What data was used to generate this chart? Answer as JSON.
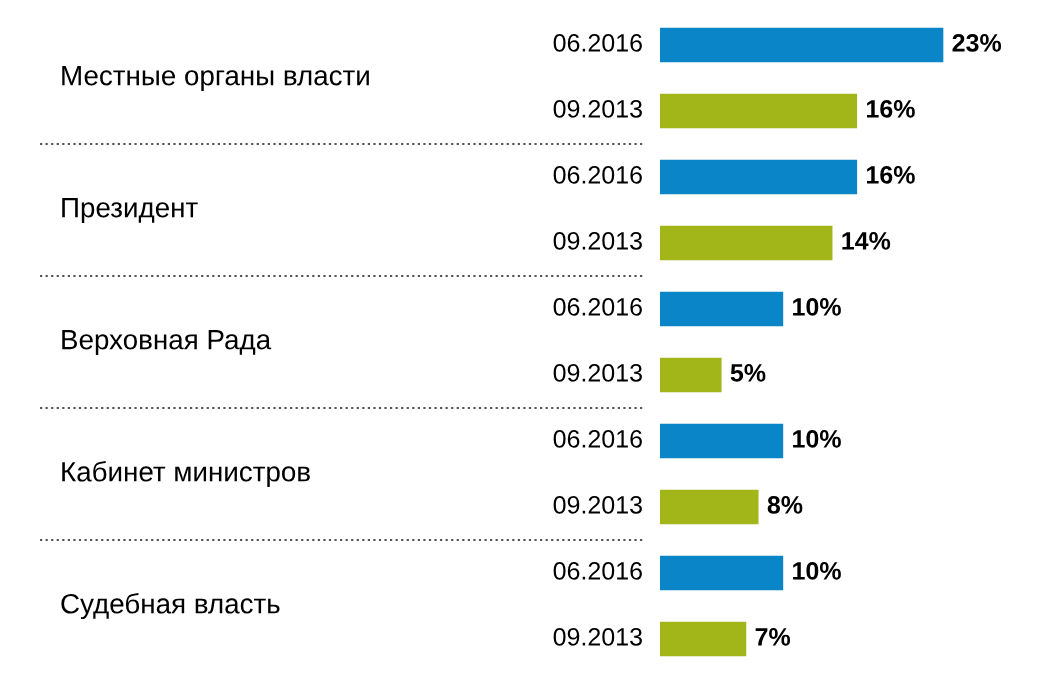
{
  "chart_data": {
    "type": "bar",
    "orientation": "horizontal",
    "categories": [
      "Местные органы власти",
      "Президент",
      "Верховная Рада",
      "Кабинет министров",
      "Судебная власть"
    ],
    "series": [
      {
        "name": "06.2016",
        "color": "#0a86c8",
        "values": [
          23,
          16,
          10,
          10,
          10
        ],
        "value_labels": [
          "23%",
          "16%",
          "10%",
          "10%",
          "10%"
        ]
      },
      {
        "name": "09.2013",
        "color": "#a2b61a",
        "values": [
          16,
          14,
          5,
          8,
          7
        ],
        "value_labels": [
          "16%",
          "14%",
          "5%",
          "8%",
          "7%"
        ]
      }
    ],
    "legend": false
  }
}
